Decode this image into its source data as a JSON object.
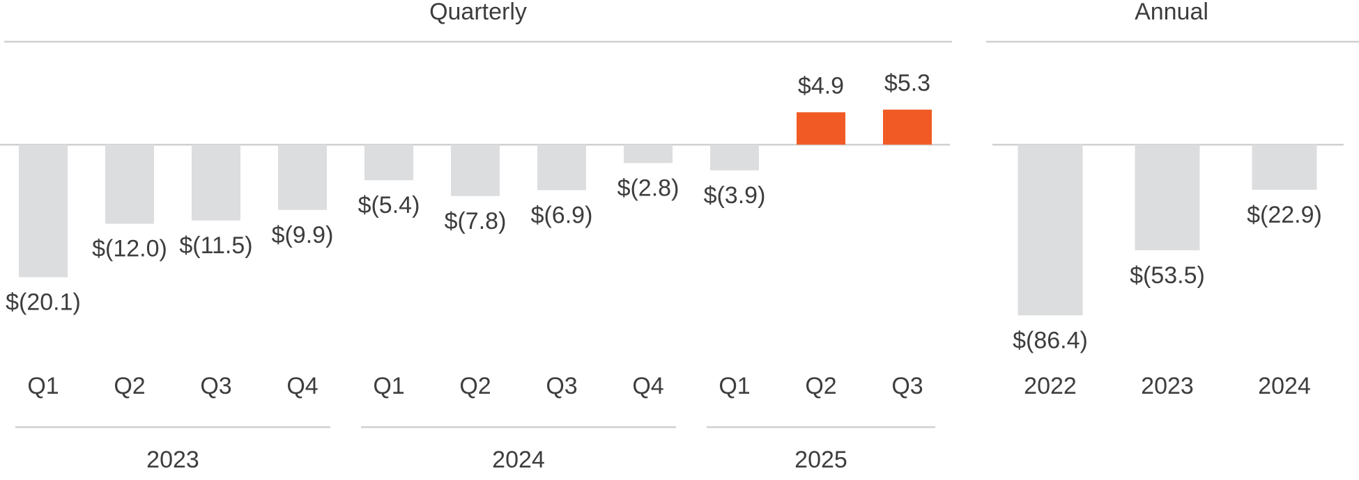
{
  "chart_data": [
    {
      "type": "bar",
      "title": "Quarterly",
      "groups": [
        {
          "label": "2023",
          "categories": [
            "Q1",
            "Q2",
            "Q3",
            "Q4"
          ],
          "values": [
            -20.1,
            -12.0,
            -11.5,
            -9.9
          ],
          "value_labels": [
            "$(20.1)",
            "$(12.0)",
            "$(11.5)",
            "$(9.9)"
          ]
        },
        {
          "label": "2024",
          "categories": [
            "Q1",
            "Q2",
            "Q3",
            "Q4"
          ],
          "values": [
            -5.4,
            -7.8,
            -6.9,
            -2.8
          ],
          "value_labels": [
            "$(5.4)",
            "$(7.8)",
            "$(6.9)",
            "$(2.8)"
          ]
        },
        {
          "label": "2025",
          "categories": [
            "Q1",
            "Q2",
            "Q3"
          ],
          "values": [
            -3.9,
            4.9,
            5.3
          ],
          "value_labels": [
            "$(3.9)",
            "$4.9",
            "$5.3"
          ]
        }
      ],
      "colors": {
        "negative": "#dcdddf",
        "positive": "#f15a24"
      },
      "ylim": [
        -25,
        10
      ]
    },
    {
      "type": "bar",
      "title": "Annual",
      "categories": [
        "2022",
        "2023",
        "2024"
      ],
      "values": [
        -86.4,
        -53.5,
        -22.9
      ],
      "value_labels": [
        "$(86.4)",
        "$(53.5)",
        "$(22.9)"
      ],
      "colors": {
        "negative": "#dcdddf",
        "positive": "#f15a24"
      },
      "ylim": [
        -100,
        40
      ]
    }
  ]
}
